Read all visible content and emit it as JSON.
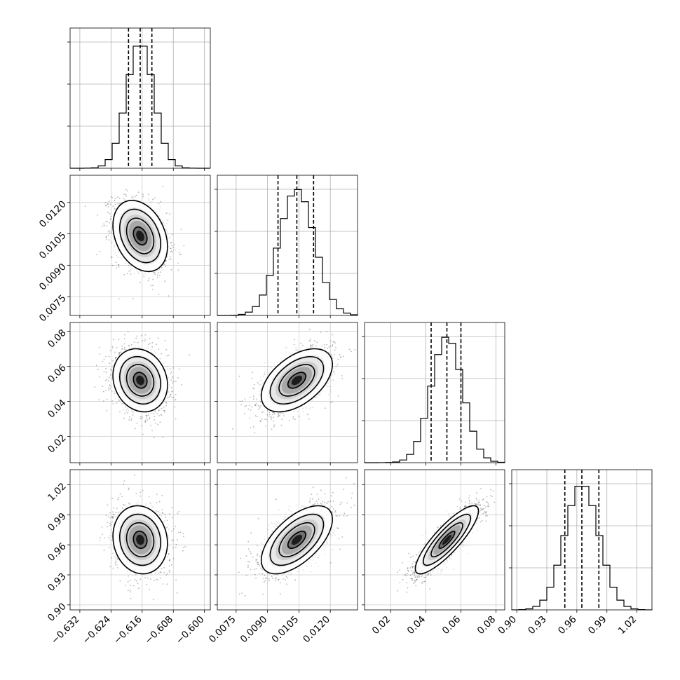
{
  "chart_data": {
    "type": "scatter",
    "title": "",
    "parameters": [
      {
        "mean": -0.6165,
        "std": 0.0035,
        "range": [
          -0.6345,
          -0.5985
        ],
        "ticks": [
          -0.632,
          -0.624,
          -0.616,
          -0.608,
          -0.6
        ],
        "tick_labels": [
          "−0.632",
          "−0.624",
          "−0.616",
          "−0.608",
          "−0.600"
        ],
        "quantiles": [
          -0.6195,
          -0.6165,
          -0.6135
        ]
      },
      {
        "mean": 0.0104,
        "std": 0.00085,
        "range": [
          0.0066,
          0.0133
        ],
        "ticks": [
          0.0075,
          0.009,
          0.0105,
          0.012
        ],
        "tick_labels": [
          "0.0075",
          "0.0090",
          "0.0105",
          "0.0120"
        ],
        "quantiles": [
          0.0095,
          0.0104,
          0.0112
        ]
      },
      {
        "mean": 0.052,
        "std": 0.009,
        "range": [
          0.005,
          0.085
        ],
        "ticks": [
          0.02,
          0.04,
          0.06,
          0.08
        ],
        "tick_labels": [
          "0.02",
          "0.04",
          "0.06",
          "0.08"
        ],
        "quantiles": [
          0.043,
          0.052,
          0.06
        ]
      },
      {
        "mean": 0.965,
        "std": 0.017,
        "range": [
          0.895,
          1.035
        ],
        "ticks": [
          0.9,
          0.93,
          0.96,
          0.99,
          1.02
        ],
        "tick_labels": [
          "0.90",
          "0.93",
          "0.96",
          "0.99",
          "1.02"
        ],
        "quantiles": [
          0.948,
          0.965,
          0.982
        ]
      }
    ],
    "correlations": {
      "1-0": -0.3,
      "2-0": -0.15,
      "2-1": 0.5,
      "3-0": -0.1,
      "3-1": 0.6,
      "3-2": 0.85
    },
    "contour_levels_sigma": [
      0.5,
      1.0,
      1.5,
      2.0
    ],
    "grid": true,
    "legend": "none"
  }
}
